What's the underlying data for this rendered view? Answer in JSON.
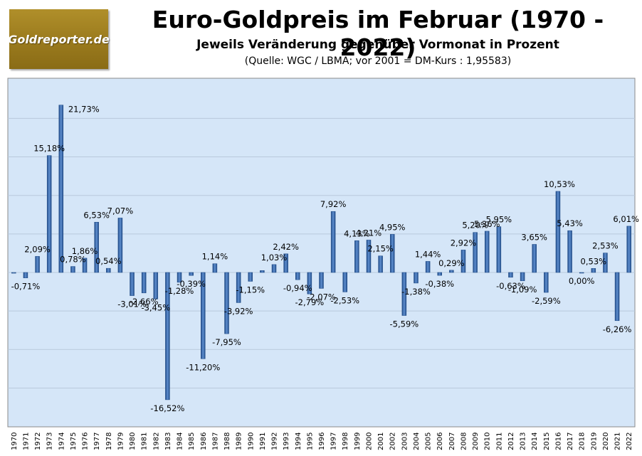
{
  "logo": {
    "text": "Goldreporter.de"
  },
  "header": {
    "title": "Euro-Goldpreis im Februar (1970 - 2022)",
    "subtitle": "Jeweils Veränderung gegenüber Vormonat in Prozent",
    "source": "(Quelle: WGC / LBMA; vor 2001 = DM-Kurs : 1,95583)"
  },
  "chart_data": {
    "type": "bar",
    "title": "Euro-Goldpreis im Februar (1970 - 2022)",
    "subtitle": "Jeweils Veränderung gegenüber Vormonat in Prozent",
    "ylim": [
      -18,
      22
    ],
    "grid": true,
    "bar_color": "#2f5f9e",
    "background_color": "#d5e6f8",
    "categories": [
      "1970",
      "1971",
      "1972",
      "1973",
      "1974",
      "1975",
      "1976",
      "1977",
      "1978",
      "1979",
      "1980",
      "1981",
      "1982",
      "1983",
      "1984",
      "1985",
      "1986",
      "1987",
      "1988",
      "1989",
      "1990",
      "1991",
      "1992",
      "1993",
      "1994",
      "1995",
      "1996",
      "1997",
      "1998",
      "1999",
      "2000",
      "2001",
      "2002",
      "2003",
      "2004",
      "2005",
      "2006",
      "2007",
      "2008",
      "2009",
      "2010",
      "2011",
      "2012",
      "2013",
      "2014",
      "2015",
      "2016",
      "2017",
      "2018",
      "2019",
      "2020",
      "2021",
      "2022"
    ],
    "values": [
      -0.1,
      -0.71,
      2.09,
      15.18,
      21.73,
      0.78,
      1.86,
      6.53,
      0.54,
      7.07,
      -3.01,
      -2.66,
      -3.45,
      -16.52,
      -1.28,
      -0.39,
      -11.2,
      1.14,
      -7.95,
      -3.92,
      -1.15,
      0.25,
      1.03,
      2.42,
      -0.94,
      -2.79,
      -2.07,
      7.92,
      -2.53,
      4.13,
      4.21,
      2.15,
      4.95,
      -5.59,
      -1.38,
      1.44,
      -0.38,
      0.29,
      2.92,
      5.2,
      5.36,
      5.95,
      -0.63,
      -1.09,
      3.65,
      -2.59,
      10.53,
      5.43,
      0.0,
      0.53,
      2.53,
      -6.26,
      6.01
    ],
    "data_labels": [
      {
        "i": 1,
        "text": "-0,71%"
      },
      {
        "i": 2,
        "text": "2,09%"
      },
      {
        "i": 3,
        "text": "15,18%"
      },
      {
        "i": 4,
        "text": "21,73%"
      },
      {
        "i": 5,
        "text": "0,78%"
      },
      {
        "i": 6,
        "text": "1,86%"
      },
      {
        "i": 7,
        "text": "6,53%"
      },
      {
        "i": 8,
        "text": "0,54%"
      },
      {
        "i": 9,
        "text": "7,07%"
      },
      {
        "i": 10,
        "text": "-3,01%"
      },
      {
        "i": 11,
        "text": "-2,66%"
      },
      {
        "i": 12,
        "text": "-3,45%"
      },
      {
        "i": 13,
        "text": "-16,52%"
      },
      {
        "i": 14,
        "text": "-1,28%"
      },
      {
        "i": 15,
        "text": "-0,39%"
      },
      {
        "i": 16,
        "text": "-11,20%"
      },
      {
        "i": 17,
        "text": "1,14%"
      },
      {
        "i": 18,
        "text": "-7,95%"
      },
      {
        "i": 19,
        "text": "-3,92%"
      },
      {
        "i": 20,
        "text": "-1,15%"
      },
      {
        "i": 22,
        "text": "1,03%"
      },
      {
        "i": 23,
        "text": "2,42%"
      },
      {
        "i": 24,
        "text": "-0,94%"
      },
      {
        "i": 25,
        "text": "-2,79%"
      },
      {
        "i": 26,
        "text": "-2,07%"
      },
      {
        "i": 27,
        "text": "7,92%"
      },
      {
        "i": 28,
        "text": "-2,53%"
      },
      {
        "i": 29,
        "text": "4,13%"
      },
      {
        "i": 30,
        "text": "4,21%"
      },
      {
        "i": 31,
        "text": "2,15%"
      },
      {
        "i": 32,
        "text": "4,95%"
      },
      {
        "i": 33,
        "text": "-5,59%"
      },
      {
        "i": 34,
        "text": "-1,38%"
      },
      {
        "i": 35,
        "text": "1,44%"
      },
      {
        "i": 36,
        "text": "-0,38%"
      },
      {
        "i": 37,
        "text": "0,29%"
      },
      {
        "i": 38,
        "text": "2,92%"
      },
      {
        "i": 39,
        "text": "5,20%"
      },
      {
        "i": 40,
        "text": "5,36%"
      },
      {
        "i": 41,
        "text": "5,95%"
      },
      {
        "i": 42,
        "text": "-0,63%"
      },
      {
        "i": 43,
        "text": "-1,09%"
      },
      {
        "i": 44,
        "text": "3,65%"
      },
      {
        "i": 45,
        "text": "-2,59%"
      },
      {
        "i": 46,
        "text": "10,53%"
      },
      {
        "i": 47,
        "text": "5,43%"
      },
      {
        "i": 48,
        "text": "0,00%"
      },
      {
        "i": 49,
        "text": "0,53%"
      },
      {
        "i": 50,
        "text": "2,53%"
      },
      {
        "i": 51,
        "text": "-6,26%"
      },
      {
        "i": 52,
        "text": "6,01%"
      }
    ]
  }
}
